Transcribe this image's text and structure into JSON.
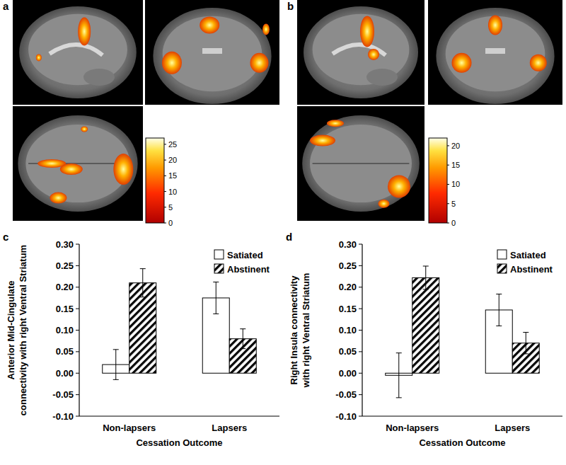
{
  "panels": [
    {
      "label": "a",
      "colorbar": {
        "range": [
          0,
          27
        ],
        "ticks": [
          0,
          5,
          10,
          15,
          20,
          25
        ]
      }
    },
    {
      "label": "b",
      "colorbar": {
        "range": [
          0,
          22
        ],
        "ticks": [
          0,
          5,
          10,
          15,
          20
        ]
      }
    }
  ],
  "chart_data": [
    {
      "type": "bar",
      "title": "c",
      "ylabel": [
        "Anterior Mid-Cingulate",
        "connectivity with right Ventral Striatum"
      ],
      "xlabel": "Cessation Outcome",
      "categories": [
        "Non-lapsers",
        "Lapsers"
      ],
      "series": [
        {
          "name": "Satiated",
          "color": "#ffffff",
          "values": [
            0.02,
            0.175
          ],
          "errors": [
            0.035,
            0.037
          ]
        },
        {
          "name": "Abstinent",
          "color": "#000000",
          "line_style": "hatched",
          "values": [
            0.21,
            0.08
          ],
          "errors": [
            0.033,
            0.023
          ]
        }
      ],
      "ylim": [
        -0.1,
        0.3
      ],
      "yticks": [
        {
          "value": -0.1,
          "label": "-0.10"
        },
        {
          "value": -0.05,
          "label": "-0.05"
        },
        {
          "value": 0,
          "label": "0.00"
        },
        {
          "value": 0.05,
          "label": "0.05"
        },
        {
          "value": 0.1,
          "label": "0.10"
        },
        {
          "value": 0.15,
          "label": "0.15"
        },
        {
          "value": 0.2,
          "label": "0.20"
        },
        {
          "value": 0.25,
          "label": "0.25"
        },
        {
          "value": 0.3,
          "label": "0.30"
        }
      ],
      "legend": "upper right"
    },
    {
      "type": "bar",
      "title": "d",
      "ylabel": [
        "Right Insula connectivity",
        "with right Ventral Striatum"
      ],
      "xlabel": "Cessation Outcome",
      "categories": [
        "Non-lapsers",
        "Lapsers"
      ],
      "series": [
        {
          "name": "Satiated",
          "color": "#ffffff",
          "values": [
            -0.005,
            0.147
          ],
          "errors": [
            0.052,
            0.037
          ]
        },
        {
          "name": "Abstinent",
          "color": "#000000",
          "line_style": "hatched",
          "values": [
            0.222,
            0.07
          ],
          "errors": [
            0.027,
            0.025
          ]
        }
      ],
      "ylim": [
        -0.1,
        0.3
      ],
      "yticks": [
        {
          "value": -0.1,
          "label": "-0.10"
        },
        {
          "value": -0.05,
          "label": "-0.05"
        },
        {
          "value": 0,
          "label": "0.00"
        },
        {
          "value": 0.05,
          "label": "0.05"
        },
        {
          "value": 0.1,
          "label": "0.10"
        },
        {
          "value": 0.15,
          "label": "0.15"
        },
        {
          "value": 0.2,
          "label": "0.20"
        },
        {
          "value": 0.25,
          "label": "0.25"
        },
        {
          "value": 0.3,
          "label": "0.30"
        }
      ],
      "legend": "upper right"
    }
  ]
}
